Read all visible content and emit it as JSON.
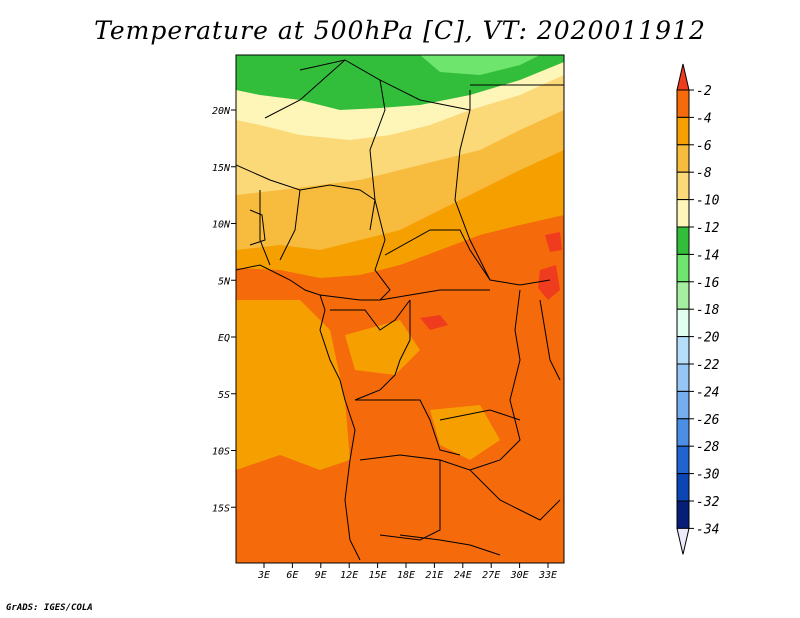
{
  "title": "Temperature at 500hPa [C], VT: 2020011912",
  "footer": "GrADS: IGES/COLA",
  "map": {
    "lat_labels": [
      "20N",
      "15N",
      "10N",
      "5N",
      "EQ",
      "5S",
      "10S",
      "15S"
    ],
    "lon_labels": [
      "3E",
      "6E",
      "9E",
      "12E",
      "15E",
      "18E",
      "21E",
      "24E",
      "27E",
      "30E",
      "33E"
    ]
  },
  "colorbar": {
    "labels": [
      "-2",
      "-4",
      "-6",
      "-8",
      "-10",
      "-12",
      "-14",
      "-16",
      "-18",
      "-20",
      "-22",
      "-24",
      "-26",
      "-28",
      "-30",
      "-32",
      "-34"
    ],
    "colors": [
      "#f03c1e",
      "#f56a0a",
      "#f5a000",
      "#f7bb3e",
      "#fbd978",
      "#fef5b8",
      "#32be3a",
      "#6ee66e",
      "#a4f0a0",
      "#e0fff0",
      "#b6defa",
      "#96c6f6",
      "#74aef0",
      "#4a8ee6",
      "#2064d2",
      "#0c46b4",
      "#071e78",
      "#ebebfa"
    ]
  }
}
